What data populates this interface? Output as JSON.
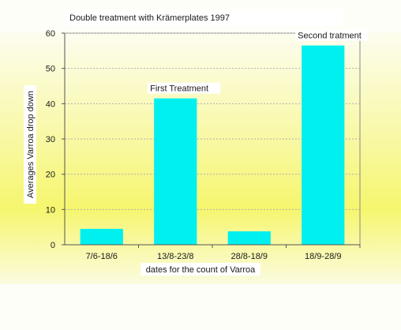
{
  "chart_data": {
    "type": "bar",
    "title": "Double treatment with Krämerplates 1997",
    "xlabel": "dates for the count of Varroa",
    "ylabel": "Averages Varroa drop down",
    "categories": [
      "7/6-18/6",
      "13/8-23/8",
      "28/8-18/9",
      "18/9-28/9"
    ],
    "values": [
      4.5,
      41.5,
      3.8,
      56.5
    ],
    "ylim": [
      0,
      60
    ],
    "yticks": [
      0,
      10,
      20,
      30,
      40,
      50,
      60
    ],
    "grid": true,
    "annotations": [
      {
        "category": "13/8-23/8",
        "text": "First Treatment"
      },
      {
        "category": "18/9-28/9",
        "text": "Second tratment"
      }
    ],
    "colors": {
      "bar": "#00f0f0",
      "plot_top": "#fbfbd6",
      "plot_mid": "#f5f560",
      "plot_bottom": "#f8f8c8"
    }
  }
}
